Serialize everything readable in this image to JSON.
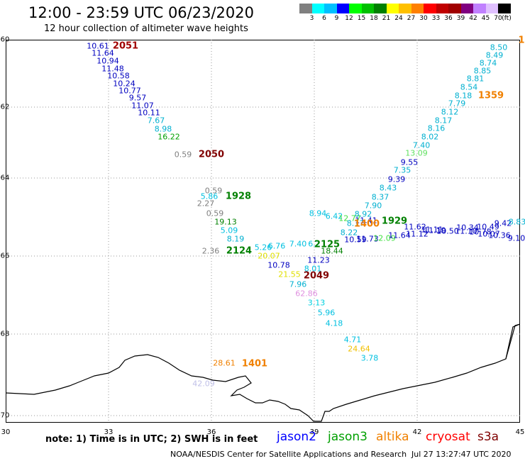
{
  "title": "12:00 - 23:59 UTC 06/23/2020",
  "subtitle": "12 hour collection of altimeter wave heights",
  "colorbar": {
    "colors": [
      "#808080",
      "#00ffff",
      "#00c0ff",
      "#0000ff",
      "#00ff00",
      "#00c000",
      "#008000",
      "#ffff00",
      "#ffc000",
      "#ff8000",
      "#ff0000",
      "#c00000",
      "#a00000",
      "#800080",
      "#c080ff",
      "#e0c0ff",
      "#000000"
    ],
    "labels": [
      "3",
      "6",
      "9",
      "12",
      "15",
      "18",
      "21",
      "24",
      "27",
      "30",
      "33",
      "36",
      "39",
      "42",
      "45",
      "70",
      "(ft)"
    ]
  },
  "lat_labels": [
    "-60",
    "-62",
    "-64",
    "-66",
    "-68",
    "-70"
  ],
  "lon_labels": [
    "30",
    "33",
    "36",
    "39",
    "42",
    "45"
  ],
  "observations": [
    {
      "text": "10.61",
      "color": "#0000c0"
    },
    {
      "text": "11.64",
      "color": "#0000c0"
    },
    {
      "text": "10.94",
      "color": "#0000c0"
    },
    {
      "text": "11.48",
      "color": "#0000c0"
    },
    {
      "text": "10.58",
      "color": "#0000c0"
    },
    {
      "text": "10.24",
      "color": "#0000c0"
    },
    {
      "text": "10.77",
      "color": "#0000c0"
    },
    {
      "text": "9.57",
      "color": "#0000c0"
    },
    {
      "text": "11.07",
      "color": "#0000c0"
    },
    {
      "text": "10.11",
      "color": "#0000c0"
    },
    {
      "text": "7.67",
      "color": "#00b0d0"
    },
    {
      "text": "8.98",
      "color": "#00b0d0"
    },
    {
      "text": "16.22",
      "color": "#00a000"
    },
    {
      "text": "0.59",
      "color": "#808080"
    },
    {
      "text": "0.59",
      "color": "#808080"
    },
    {
      "text": "5.86",
      "color": "#00c0e0"
    },
    {
      "text": "2.27",
      "color": "#808080"
    },
    {
      "text": "0.59",
      "color": "#808080"
    },
    {
      "text": "19.13",
      "color": "#008000"
    },
    {
      "text": "5.09",
      "color": "#00c0e0"
    },
    {
      "text": "8.19",
      "color": "#00b0d0"
    },
    {
      "text": "5.26",
      "color": "#00c0e0"
    },
    {
      "text": "6.76",
      "color": "#00c0e0"
    },
    {
      "text": "2.36",
      "color": "#808080"
    },
    {
      "text": "20.07",
      "color": "#e0e000"
    },
    {
      "text": "10.78",
      "color": "#0000c0"
    },
    {
      "text": "21.55",
      "color": "#e0e000"
    },
    {
      "text": "7.96",
      "color": "#00b0d0"
    },
    {
      "text": "62.86",
      "color": "#e090e0"
    },
    {
      "text": "3.13",
      "color": "#00d0e0"
    },
    {
      "text": "5.96",
      "color": "#00c0e0"
    },
    {
      "text": "4.18",
      "color": "#00c0e0"
    },
    {
      "text": "4.71",
      "color": "#00c0e0"
    },
    {
      "text": "24.64",
      "color": "#f0c000"
    },
    {
      "text": "3.78",
      "color": "#00c0e0"
    },
    {
      "text": "28.61",
      "color": "#f08000"
    },
    {
      "text": "42.09",
      "color": "#c0c0e8"
    },
    {
      "text": "7.40",
      "color": "#00c0e0"
    },
    {
      "text": "6.2",
      "color": "#00c0e0"
    },
    {
      "text": "18.44",
      "color": "#008000"
    },
    {
      "text": "11.23",
      "color": "#0000c0"
    },
    {
      "text": "8.01",
      "color": "#00c0e0"
    },
    {
      "text": "8.94",
      "color": "#00c0e0"
    },
    {
      "text": "6.42",
      "color": "#00c0e0"
    },
    {
      "text": "12.77",
      "color": "#40e040"
    },
    {
      "text": "11.41",
      "color": "#0000c0"
    },
    {
      "text": "8.92",
      "color": "#00b0d0"
    },
    {
      "text": "8.17",
      "color": "#00b0d0"
    },
    {
      "text": "8.22",
      "color": "#00b0d0"
    },
    {
      "text": "10.59",
      "color": "#0000c0"
    },
    {
      "text": "11.73",
      "color": "#0000c0"
    },
    {
      "text": "12.09",
      "color": "#40e040"
    },
    {
      "text": "11.64",
      "color": "#0000c0"
    },
    {
      "text": "11.62",
      "color": "#0000c0"
    },
    {
      "text": "11.12",
      "color": "#0000c0"
    },
    {
      "text": "11.11",
      "color": "#0000c0"
    },
    {
      "text": "11.19",
      "color": "#0000c0"
    },
    {
      "text": "10.50",
      "color": "#0000c0"
    },
    {
      "text": "11.10",
      "color": "#0000c0"
    },
    {
      "text": "10.34",
      "color": "#0000c0"
    },
    {
      "text": "10.78",
      "color": "#0000c0"
    },
    {
      "text": "10.49",
      "color": "#0000c0"
    },
    {
      "text": "10.07",
      "color": "#0000c0"
    },
    {
      "text": "9.42",
      "color": "#0000c0"
    },
    {
      "text": "10.36",
      "color": "#0000c0"
    },
    {
      "text": "8.83",
      "color": "#00b0d0"
    },
    {
      "text": "9.10",
      "color": "#0000c0"
    },
    {
      "text": "7.90",
      "color": "#00b0d0"
    },
    {
      "text": "8.37",
      "color": "#00b0d0"
    },
    {
      "text": "8.43",
      "color": "#00b0d0"
    },
    {
      "text": "9.39",
      "color": "#0000c0"
    },
    {
      "text": "7.35",
      "color": "#00b0d0"
    },
    {
      "text": "9.55",
      "color": "#0000c0"
    },
    {
      "text": "13.09",
      "color": "#60e060"
    },
    {
      "text": "7.40",
      "color": "#00b0d0"
    },
    {
      "text": "8.02",
      "color": "#00b0d0"
    },
    {
      "text": "8.16",
      "color": "#00b0d0"
    },
    {
      "text": "8.17",
      "color": "#00b0d0"
    },
    {
      "text": "8.12",
      "color": "#00b0d0"
    },
    {
      "text": "7.79",
      "color": "#00b0d0"
    },
    {
      "text": "8.18",
      "color": "#00b0d0"
    },
    {
      "text": "8.54",
      "color": "#00b0d0"
    },
    {
      "text": "8.81",
      "color": "#00b0d0"
    },
    {
      "text": "8.85",
      "color": "#00b0d0"
    },
    {
      "text": "8.74",
      "color": "#00b0d0"
    },
    {
      "text": "8.49",
      "color": "#00b0d0"
    },
    {
      "text": "8.50",
      "color": "#00b0d0"
    }
  ],
  "time_labels": [
    {
      "text": "2051",
      "color": "#a00000"
    },
    {
      "text": "2050",
      "color": "#800000"
    },
    {
      "text": "1928",
      "color": "#008000"
    },
    {
      "text": "2124",
      "color": "#008000"
    },
    {
      "text": "2125",
      "color": "#008000"
    },
    {
      "text": "2049",
      "color": "#800000"
    },
    {
      "text": "1401",
      "color": "#f08000"
    },
    {
      "text": "1400",
      "color": "#f08000"
    },
    {
      "text": "1929",
      "color": "#008000"
    },
    {
      "text": "1359",
      "color": "#f08000"
    },
    {
      "text": "1",
      "color": "#f08000"
    }
  ],
  "note": "note: 1) Time is in UTC; 2) SWH is in feet",
  "satellites": [
    {
      "name": "jason2",
      "color": "#0000ff"
    },
    {
      "name": "jason3",
      "color": "#00a000"
    },
    {
      "name": "altika",
      "color": "#f08000"
    },
    {
      "name": "cryosat",
      "color": "#ff0000"
    },
    {
      "name": "s3a",
      "color": "#800000"
    }
  ],
  "footer_left": "NOAA/NESDIS Center for Satellite Applications and Research",
  "footer_right": "Jul 27 13:27:47 UTC 2020"
}
